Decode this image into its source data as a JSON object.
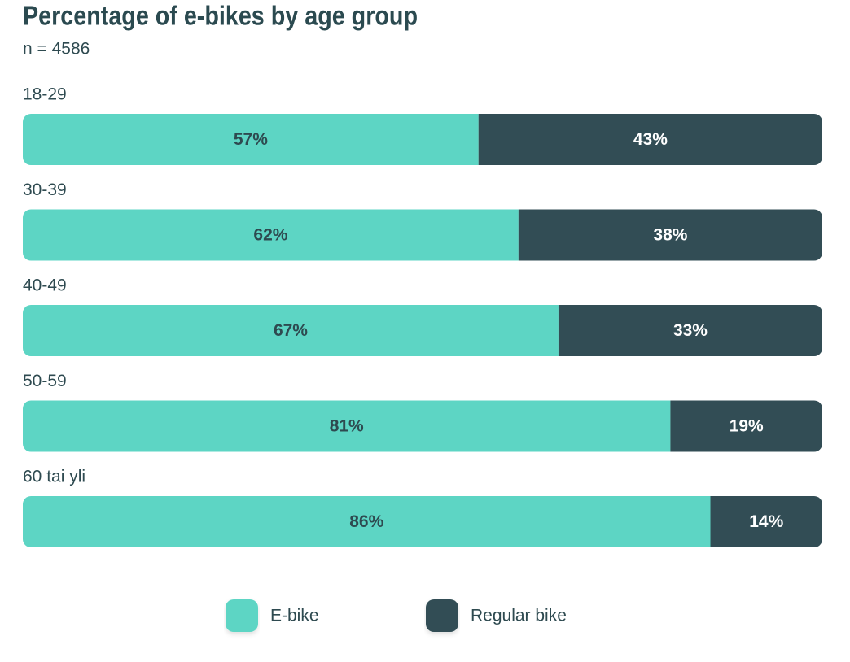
{
  "chart_data": {
    "type": "stacked-bar-100",
    "title": "Percentage of e-bikes by age group",
    "subtitle": "n = 4586",
    "categories": [
      "18-29",
      "30-39",
      "40-49",
      "50-59",
      "60 tai yli"
    ],
    "series": [
      {
        "name": "E-bike",
        "color": "#5dd5c4",
        "label_color": "#2e4a50",
        "values": [
          57,
          62,
          67,
          81,
          86
        ],
        "value_labels": [
          "57%",
          "62%",
          "67%",
          "81%",
          "86%"
        ]
      },
      {
        "name": "Regular bike",
        "color": "#304d54",
        "label_color": "#ffffff",
        "values": [
          43,
          38,
          33,
          19,
          14
        ],
        "value_labels": [
          "43%",
          "38%",
          "33%",
          "19%",
          "14%"
        ]
      }
    ]
  }
}
